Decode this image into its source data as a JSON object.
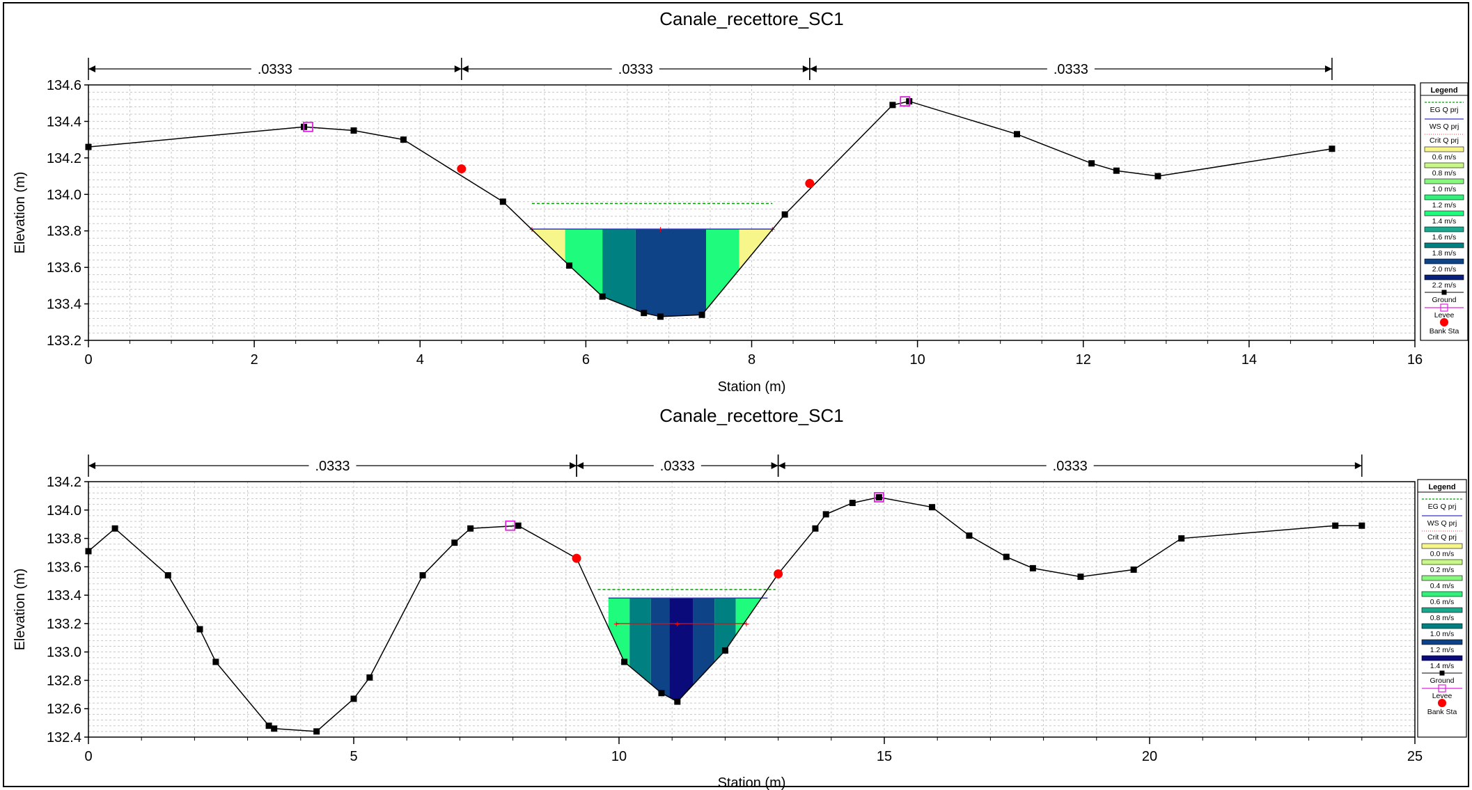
{
  "chart_data": [
    {
      "type": "line",
      "title": "Canale_recettore_SC1",
      "xlabel": "Station (m)",
      "ylabel": "Elevation (m)",
      "xlim": [
        0,
        16
      ],
      "ylim": [
        133.2,
        134.6
      ],
      "x_ticks": [
        "0",
        "2",
        "4",
        "6",
        "8",
        "10",
        "12",
        "14",
        "16"
      ],
      "y_ticks": [
        "133.2",
        "133.4",
        "133.6",
        "133.8",
        "134.0",
        "134.2",
        "134.4",
        "134.6"
      ],
      "grid": true,
      "legend_position": "right",
      "manning_n": [
        {
          "from": 0,
          "to": 4.5,
          "label": ".0333"
        },
        {
          "from": 4.5,
          "to": 8.7,
          "label": ".0333"
        },
        {
          "from": 8.7,
          "to": 15.0,
          "label": ".0333"
        }
      ],
      "ground": [
        [
          0,
          134.26
        ],
        [
          2.6,
          134.37
        ],
        [
          3.2,
          134.35
        ],
        [
          3.8,
          134.3
        ],
        [
          5.0,
          133.96
        ],
        [
          5.8,
          133.61
        ],
        [
          6.2,
          133.44
        ],
        [
          6.7,
          133.35
        ],
        [
          6.9,
          133.33
        ],
        [
          7.4,
          133.34
        ],
        [
          8.4,
          133.89
        ],
        [
          9.7,
          134.49
        ],
        [
          9.9,
          134.51
        ],
        [
          11.2,
          134.33
        ],
        [
          12.1,
          134.17
        ],
        [
          12.4,
          134.13
        ],
        [
          12.9,
          134.1
        ],
        [
          15.0,
          134.25
        ]
      ],
      "levees": [
        [
          2.65,
          134.37
        ],
        [
          9.85,
          134.51
        ]
      ],
      "bank_stations": [
        [
          4.5,
          134.14
        ],
        [
          8.7,
          134.06
        ]
      ],
      "ws_elevation": 133.81,
      "ws_extent": [
        5.35,
        8.25
      ],
      "eg_elevation": 133.95,
      "eg_extent": [
        5.35,
        8.25
      ],
      "crit_marker": [
        6.9,
        133.81
      ],
      "velocity_bands": [
        {
          "from": 5.35,
          "to": 5.75,
          "color": "#f6f68a"
        },
        {
          "from": 5.75,
          "to": 6.2,
          "color": "#1efb7d"
        },
        {
          "from": 6.2,
          "to": 6.6,
          "color": "#008080"
        },
        {
          "from": 6.6,
          "to": 7.45,
          "color": "#0e4387"
        },
        {
          "from": 7.45,
          "to": 7.85,
          "color": "#1efb7d"
        },
        {
          "from": 7.85,
          "to": 8.25,
          "color": "#f6f68a"
        }
      ],
      "legend": {
        "title": "Legend",
        "lines": [
          "EG Q prj",
          "WS Q prj",
          "Crit Q prj"
        ],
        "velocity_entries": [
          {
            "label": "0.6 m/s",
            "color": "#f6f68a"
          },
          {
            "label": "0.8 m/s",
            "color": "#c8f887"
          },
          {
            "label": "1.0 m/s",
            "color": "#88f77d"
          },
          {
            "label": "1.2 m/s",
            "color": "#32f07a"
          },
          {
            "label": "1.4 m/s",
            "color": "#1efb7d"
          },
          {
            "label": "1.6 m/s",
            "color": "#1aa88e"
          },
          {
            "label": "1.8 m/s",
            "color": "#008080"
          },
          {
            "label": "2.0 m/s",
            "color": "#0e4387"
          },
          {
            "label": "2.2 m/s",
            "color": "#0a1e7c"
          }
        ],
        "symbols": [
          "Ground",
          "Levee",
          "Bank Sta"
        ]
      }
    },
    {
      "type": "line",
      "title": "Canale_recettore_SC1",
      "xlabel": "Station (m)",
      "ylabel": "Elevation (m)",
      "xlim": [
        0,
        25
      ],
      "ylim": [
        132.4,
        134.2
      ],
      "x_ticks": [
        "0",
        "5",
        "10",
        "15",
        "20",
        "25"
      ],
      "y_ticks": [
        "132.4",
        "132.6",
        "132.8",
        "133.0",
        "133.2",
        "133.4",
        "133.6",
        "133.8",
        "134.0",
        "134.2"
      ],
      "grid": true,
      "legend_position": "right",
      "manning_n": [
        {
          "from": 0,
          "to": 9.2,
          "label": ".0333"
        },
        {
          "from": 9.2,
          "to": 13.0,
          "label": ".0333"
        },
        {
          "from": 13.0,
          "to": 24.0,
          "label": ".0333"
        }
      ],
      "ground": [
        [
          0,
          133.71
        ],
        [
          0.5,
          133.87
        ],
        [
          1.5,
          133.54
        ],
        [
          2.1,
          133.16
        ],
        [
          2.4,
          132.93
        ],
        [
          3.4,
          132.48
        ],
        [
          3.5,
          132.46
        ],
        [
          4.3,
          132.44
        ],
        [
          5.0,
          132.67
        ],
        [
          5.3,
          132.82
        ],
        [
          6.3,
          133.54
        ],
        [
          6.9,
          133.77
        ],
        [
          7.2,
          133.87
        ],
        [
          8.1,
          133.89
        ],
        [
          9.2,
          133.66
        ],
        [
          10.1,
          132.93
        ],
        [
          10.8,
          132.71
        ],
        [
          11.1,
          132.65
        ],
        [
          12.0,
          133.01
        ],
        [
          13.0,
          133.55
        ],
        [
          13.7,
          133.87
        ],
        [
          13.9,
          133.97
        ],
        [
          14.4,
          134.05
        ],
        [
          14.9,
          134.09
        ],
        [
          15.9,
          134.02
        ],
        [
          16.6,
          133.82
        ],
        [
          17.3,
          133.67
        ],
        [
          17.8,
          133.59
        ],
        [
          18.7,
          133.53
        ],
        [
          19.7,
          133.58
        ],
        [
          20.6,
          133.8
        ],
        [
          23.5,
          133.89
        ],
        [
          24.0,
          133.89
        ]
      ],
      "levees": [
        [
          7.95,
          133.89
        ],
        [
          14.9,
          134.09
        ]
      ],
      "bank_stations": [
        [
          9.2,
          133.66
        ],
        [
          13.0,
          133.55
        ]
      ],
      "ws_elevation": 133.38,
      "ws_extent": [
        9.8,
        12.8
      ],
      "eg_elevation": 133.44,
      "eg_extent": [
        9.6,
        12.95
      ],
      "crit_marker": [
        11.1,
        133.2
      ],
      "crit_extent": [
        9.95,
        12.4
      ],
      "velocity_bands": [
        {
          "from": 9.75,
          "to": 10.2,
          "color": "#1efb7d"
        },
        {
          "from": 10.2,
          "to": 10.6,
          "color": "#008080"
        },
        {
          "from": 10.6,
          "to": 10.95,
          "color": "#0e4387"
        },
        {
          "from": 10.95,
          "to": 11.4,
          "color": "#0a0a7a"
        },
        {
          "from": 11.4,
          "to": 11.8,
          "color": "#0e4387"
        },
        {
          "from": 11.8,
          "to": 12.2,
          "color": "#008080"
        },
        {
          "from": 12.2,
          "to": 12.85,
          "color": "#1efb7d"
        }
      ],
      "legend": {
        "title": "Legend",
        "lines": [
          "EG Q prj",
          "WS Q prj",
          "Crit Q prj"
        ],
        "velocity_entries": [
          {
            "label": "0.0 m/s",
            "color": "#f6f68a"
          },
          {
            "label": "0.2 m/s",
            "color": "#c8f887"
          },
          {
            "label": "0.4 m/s",
            "color": "#88f77d"
          },
          {
            "label": "0.6 m/s",
            "color": "#32f07a"
          },
          {
            "label": "0.8 m/s",
            "color": "#1aa88e"
          },
          {
            "label": "1.0 m/s",
            "color": "#008080"
          },
          {
            "label": "1.2 m/s",
            "color": "#0e4387"
          },
          {
            "label": "1.4 m/s",
            "color": "#0a0a7a"
          }
        ],
        "symbols": [
          "Ground",
          "Levee",
          "Bank Sta"
        ]
      }
    }
  ]
}
